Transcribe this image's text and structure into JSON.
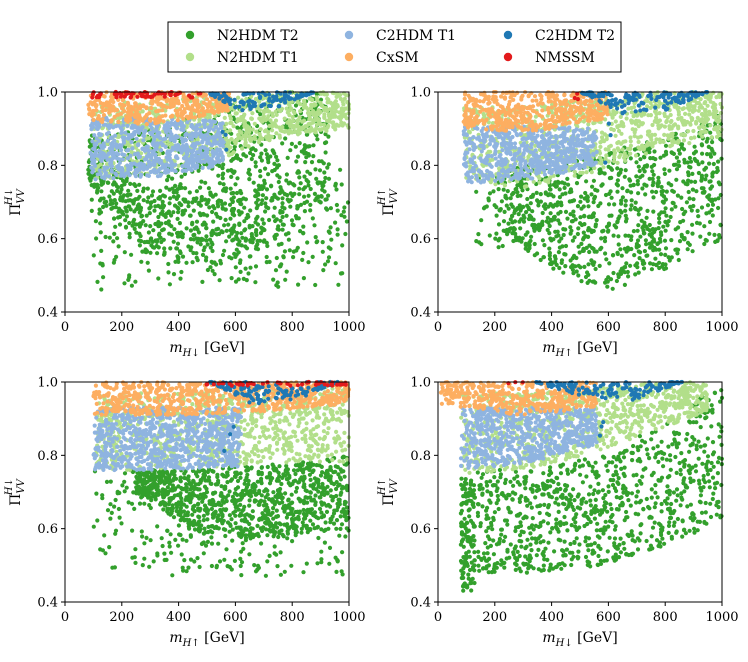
{
  "legend": {
    "location": "top-center",
    "entries": [
      {
        "name": "N2HDM T2",
        "color": "#33a02c"
      },
      {
        "name": "N2HDM T1",
        "color": "#b2df8a"
      },
      {
        "name": "C2HDM T1",
        "color": "#8fb4e0"
      },
      {
        "name": "CxSM",
        "color": "#fdae61"
      },
      {
        "name": "C2HDM T2",
        "color": "#1f78b4"
      },
      {
        "name": "NMSSM",
        "color": "#e31a1c"
      }
    ]
  },
  "chart_data": [
    {
      "type": "scatter",
      "panel": "top-left",
      "xlabel": "m_{H↓} [GeV]",
      "xlabel_main": "m",
      "xlabel_sub": "H↓",
      "xlabel_unit": " [GeV]",
      "ylabel_main": "Π",
      "ylabel_sub": "VV",
      "ylabel_sup": "H↓",
      "xlim": [
        0,
        1000
      ],
      "ylim": [
        0.4,
        1.0
      ],
      "xticks": [
        0,
        200,
        400,
        600,
        800,
        1000
      ],
      "yticks": [
        0.4,
        0.6,
        0.8,
        1.0
      ],
      "xtick_labels": [
        "0",
        "200",
        "400",
        "600",
        "800",
        "1000"
      ],
      "ytick_labels": [
        "0.4",
        "0.6",
        "0.8",
        "1.0"
      ],
      "series": [
        {
          "name": "N2HDM T2",
          "regions": [
            {
              "x": [
                80,
                930
              ],
              "y_bottom": [
                0.74,
                0.55,
                0.52,
                0.58,
                0.72
              ],
              "y_top": [
                0.88,
                0.9,
                0.95,
                1.0,
                1.0
              ],
              "density": 1.0
            },
            {
              "x": [
                90,
                1000
              ],
              "y_bottom": [
                0.46,
                0.46,
                0.46,
                0.46
              ],
              "y_top": [
                0.78,
                0.74,
                0.74,
                0.8
              ],
              "density": 0.15
            }
          ]
        },
        {
          "name": "N2HDM T1",
          "regions": [
            {
              "x": [
                100,
                1000
              ],
              "y_bottom": [
                0.76,
                0.78,
                0.82,
                0.88,
                0.9
              ],
              "y_top": [
                0.97,
                0.98,
                0.99,
                1.0,
                1.0
              ],
              "density": 1.0
            }
          ]
        },
        {
          "name": "C2HDM T1",
          "regions": [
            {
              "x": [
                90,
                560
              ],
              "y_bottom": [
                0.76,
                0.77,
                0.8
              ],
              "y_top": [
                0.93,
                0.93,
                0.92
              ],
              "density": 1.0
            }
          ]
        },
        {
          "name": "CxSM",
          "regions": [
            {
              "x": [
                80,
                580
              ],
              "y_bottom": [
                0.92,
                0.91,
                0.95
              ],
              "y_top": [
                1.0,
                1.0,
                1.0
              ],
              "density": 1.0
            }
          ]
        },
        {
          "name": "C2HDM T2",
          "regions": [
            {
              "x": [
                490,
                880
              ],
              "y_bottom": [
                1.0,
                0.95,
                0.96,
                1.0
              ],
              "y_top": [
                1.0,
                1.0,
                1.0,
                1.0
              ],
              "density": 1.0
            },
            {
              "x": [
                510,
                580
              ],
              "y_bottom": [
                0.77,
                0.8
              ],
              "y_top": [
                0.93,
                0.93
              ],
              "density": 0.03
            }
          ]
        },
        {
          "name": "NMSSM",
          "regions": [
            {
              "x": [
                80,
                490
              ],
              "y_bottom": [
                0.985,
                0.985
              ],
              "y_top": [
                1.0,
                1.0
              ],
              "density": 1.0
            }
          ]
        }
      ]
    },
    {
      "type": "scatter",
      "panel": "top-right",
      "xlabel": "m_{H↑} [GeV]",
      "xlabel_main": "m",
      "xlabel_sub": "H↑",
      "xlabel_unit": " [GeV]",
      "ylabel_main": "Π",
      "ylabel_sub": "VV",
      "ylabel_sup": "H↑",
      "xlim": [
        0,
        1000
      ],
      "ylim": [
        0.4,
        1.0
      ],
      "xticks": [
        0,
        200,
        400,
        600,
        800,
        1000
      ],
      "yticks": [
        0.4,
        0.6,
        0.8,
        1.0
      ],
      "xtick_labels": [
        "0",
        "200",
        "400",
        "600",
        "800",
        "1000"
      ],
      "ytick_labels": [
        "0.4",
        "0.6",
        "0.8",
        "1.0"
      ],
      "series": [
        {
          "name": "N2HDM T2",
          "regions": [
            {
              "x": [
                230,
                1000
              ],
              "y_bottom": [
                0.62,
                0.5,
                0.46,
                0.52,
                0.6
              ],
              "y_top": [
                0.8,
                0.8,
                0.84,
                0.88,
                0.96
              ],
              "density": 1.0
            },
            {
              "x": [
                130,
                300
              ],
              "y_bottom": [
                0.56,
                0.58
              ],
              "y_top": [
                0.78,
                0.78
              ],
              "density": 0.15
            }
          ]
        },
        {
          "name": "N2HDM T1",
          "regions": [
            {
              "x": [
                90,
                1000
              ],
              "y_bottom": [
                0.75,
                0.74,
                0.78,
                0.84,
                0.88
              ],
              "y_top": [
                0.96,
                0.96,
                0.98,
                1.0,
                1.0
              ],
              "density": 1.0
            }
          ]
        },
        {
          "name": "C2HDM T1",
          "regions": [
            {
              "x": [
                90,
                560
              ],
              "y_bottom": [
                0.75,
                0.76,
                0.8
              ],
              "y_top": [
                0.91,
                0.91,
                0.9
              ],
              "density": 1.0
            }
          ]
        },
        {
          "name": "CxSM",
          "regions": [
            {
              "x": [
                90,
                600
              ],
              "y_bottom": [
                0.9,
                0.89,
                0.93
              ],
              "y_top": [
                1.0,
                1.0,
                1.0
              ],
              "density": 1.0
            }
          ]
        },
        {
          "name": "C2HDM T2",
          "regions": [
            {
              "x": [
                500,
                950
              ],
              "y_bottom": [
                1.0,
                0.94,
                0.95,
                1.0
              ],
              "y_top": [
                1.0,
                1.0,
                1.0,
                1.0
              ],
              "density": 1.0
            },
            {
              "x": [
                560,
                620
              ],
              "y_bottom": [
                0.79,
                0.82
              ],
              "y_top": [
                0.93,
                0.93
              ],
              "density": 0.03
            }
          ]
        },
        {
          "name": "NMSSM",
          "regions": [
            {
              "x": [
                480,
                500
              ],
              "y_bottom": [
                0.98,
                0.98
              ],
              "y_top": [
                1.0,
                1.0
              ],
              "density": 0.3
            }
          ]
        }
      ]
    },
    {
      "type": "scatter",
      "panel": "bottom-left",
      "xlabel": "m_{H↑} [GeV]",
      "xlabel_main": "m",
      "xlabel_sub": "H↑",
      "xlabel_unit": " [GeV]",
      "ylabel_main": "Π",
      "ylabel_sub": "VV",
      "ylabel_sup": "H↓",
      "xlim": [
        0,
        1000
      ],
      "ylim": [
        0.4,
        1.0
      ],
      "xticks": [
        0,
        200,
        400,
        600,
        800,
        1000
      ],
      "yticks": [
        0.4,
        0.6,
        0.8,
        1.0
      ],
      "xtick_labels": [
        "0",
        "200",
        "400",
        "600",
        "800",
        "1000"
      ],
      "ytick_labels": [
        "0.4",
        "0.6",
        "0.8",
        "1.0"
      ],
      "series": [
        {
          "name": "N2HDM T2",
          "regions": [
            {
              "x": [
                250,
                1000
              ],
              "y_bottom": [
                0.7,
                0.6,
                0.57,
                0.58,
                0.6
              ],
              "y_top": [
                0.76,
                0.76,
                0.77,
                0.78,
                0.8
              ],
              "density": 1.0
            },
            {
              "x": [
                100,
                1000
              ],
              "y_bottom": [
                0.46,
                0.46,
                0.46,
                0.46
              ],
              "y_top": [
                0.76,
                0.76,
                0.76,
                0.76
              ],
              "density": 0.12
            }
          ]
        },
        {
          "name": "N2HDM T1",
          "regions": [
            {
              "x": [
                110,
                1000
              ],
              "y_bottom": [
                0.76,
                0.76,
                0.77,
                0.78,
                0.78
              ],
              "y_top": [
                0.97,
                0.97,
                0.98,
                0.98,
                0.99
              ],
              "density": 1.0
            }
          ]
        },
        {
          "name": "C2HDM T1",
          "regions": [
            {
              "x": [
                100,
                620
              ],
              "y_bottom": [
                0.76,
                0.76,
                0.77
              ],
              "y_top": [
                0.93,
                0.93,
                0.93
              ],
              "density": 1.0
            }
          ]
        },
        {
          "name": "CxSM",
          "regions": [
            {
              "x": [
                100,
                1000
              ],
              "y_bottom": [
                0.91,
                0.91,
                0.92,
                0.94
              ],
              "y_top": [
                1.0,
                1.0,
                1.0,
                1.0
              ],
              "density": 1.0
            }
          ]
        },
        {
          "name": "C2HDM T2",
          "regions": [
            {
              "x": [
                510,
                960
              ],
              "y_bottom": [
                1.0,
                0.94,
                0.95,
                1.0
              ],
              "y_top": [
                1.0,
                1.0,
                1.0,
                1.0
              ],
              "density": 1.0
            },
            {
              "x": [
                560,
                620
              ],
              "y_bottom": [
                0.78,
                0.82
              ],
              "y_top": [
                0.93,
                0.93
              ],
              "density": 0.03
            }
          ]
        },
        {
          "name": "NMSSM",
          "regions": [
            {
              "x": [
                490,
                1000
              ],
              "y_bottom": [
                0.99,
                0.99
              ],
              "y_top": [
                1.0,
                1.0
              ],
              "density": 1.0
            }
          ]
        }
      ]
    },
    {
      "type": "scatter",
      "panel": "bottom-right",
      "xlabel": "m_{H↓} [GeV]",
      "xlabel_main": "m",
      "xlabel_sub": "H↓",
      "xlabel_unit": " [GeV]",
      "ylabel_main": "Π",
      "ylabel_sub": "VV",
      "ylabel_sup": "H↑",
      "xlim": [
        0,
        1000
      ],
      "ylim": [
        0.4,
        1.0
      ],
      "xticks": [
        0,
        200,
        400,
        600,
        800,
        1000
      ],
      "yticks": [
        0.4,
        0.6,
        0.8,
        1.0
      ],
      "xtick_labels": [
        "0",
        "200",
        "400",
        "600",
        "800",
        "1000"
      ],
      "ytick_labels": [
        "0.4",
        "0.6",
        "0.8",
        "1.0"
      ],
      "series": [
        {
          "name": "N2HDM T2",
          "regions": [
            {
              "x": [
                140,
                1000
              ],
              "y_bottom": [
                0.48,
                0.48,
                0.5,
                0.55,
                0.62
              ],
              "y_top": [
                0.76,
                0.76,
                0.8,
                0.88,
                1.0
              ],
              "density": 1.0
            },
            {
              "x": [
                80,
                130
              ],
              "y_bottom": [
                0.43,
                0.43
              ],
              "y_top": [
                0.74,
                0.74
              ],
              "density": 0.9
            }
          ]
        },
        {
          "name": "N2HDM T1",
          "regions": [
            {
              "x": [
                80,
                950
              ],
              "y_bottom": [
                0.75,
                0.76,
                0.8,
                0.86,
                0.92
              ],
              "y_top": [
                0.97,
                0.97,
                0.98,
                1.0,
                1.0
              ],
              "density": 1.0
            }
          ]
        },
        {
          "name": "C2HDM T1",
          "regions": [
            {
              "x": [
                80,
                560
              ],
              "y_bottom": [
                0.76,
                0.78,
                0.83
              ],
              "y_top": [
                0.93,
                0.93,
                0.93
              ],
              "density": 1.0
            }
          ]
        },
        {
          "name": "CxSM",
          "regions": [
            {
              "x": [
                10,
                560
              ],
              "y_bottom": [
                0.94,
                0.91,
                0.93
              ],
              "y_top": [
                1.0,
                1.0,
                1.0
              ],
              "density": 1.0
            }
          ]
        },
        {
          "name": "C2HDM T2",
          "regions": [
            {
              "x": [
                340,
                860
              ],
              "y_bottom": [
                1.0,
                0.96,
                0.95,
                1.0
              ],
              "y_top": [
                1.0,
                1.0,
                1.0,
                1.0
              ],
              "density": 1.0
            },
            {
              "x": [
                550,
                600
              ],
              "y_bottom": [
                0.8,
                0.82
              ],
              "y_top": [
                0.92,
                0.92
              ],
              "density": 0.03
            }
          ]
        },
        {
          "name": "NMSSM",
          "regions": [
            {
              "x": [
                190,
                310
              ],
              "y_bottom": [
                0.98,
                0.98
              ],
              "y_top": [
                1.0,
                1.0
              ],
              "density": 0.08
            }
          ]
        }
      ]
    }
  ]
}
